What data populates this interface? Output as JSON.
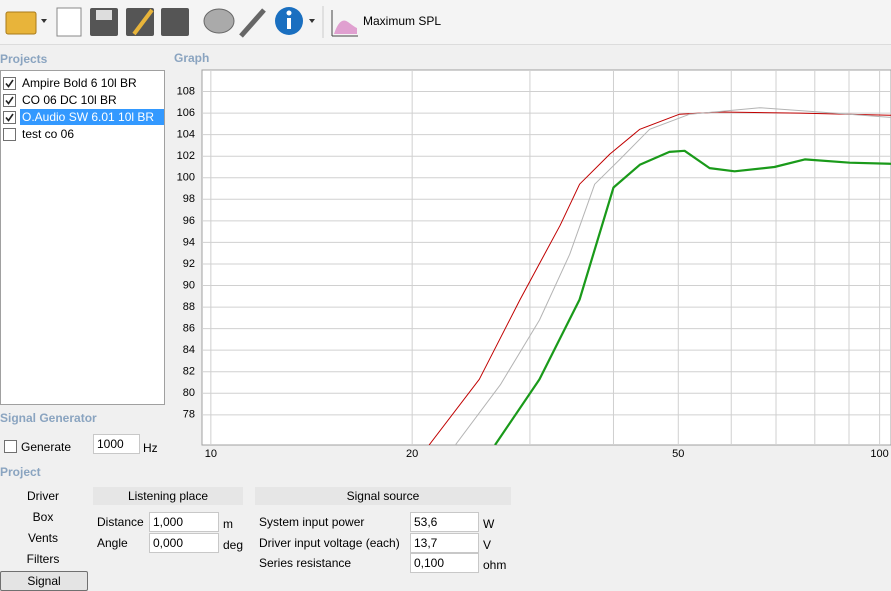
{
  "toolbar": {
    "title": "Maximum SPL"
  },
  "projects": {
    "title": "Projects",
    "selected": 2,
    "items": [
      {
        "label": "Ampire Bold 6 10l BR",
        "checked": true
      },
      {
        "label": "CO 06 DC 10l BR",
        "checked": true
      },
      {
        "label": "O.Audio SW 6.01 10l BR",
        "checked": true
      },
      {
        "label": "test co 06",
        "checked": false
      }
    ]
  },
  "signal_generator": {
    "title": "Signal Generator",
    "generate_label": "Generate",
    "generate_checked": false,
    "frequency": "1000",
    "unit": "Hz"
  },
  "project": {
    "title": "Project",
    "active_tab": 4,
    "tabs": [
      "Driver",
      "Box",
      "Vents",
      "Filters",
      "Signal"
    ],
    "listening_place": {
      "title": "Listening place",
      "fields": [
        {
          "label": "Distance",
          "value": "1,000",
          "unit": "m"
        },
        {
          "label": "Angle",
          "value": "0,000",
          "unit": "deg"
        }
      ]
    },
    "signal_source": {
      "title": "Signal source",
      "fields": [
        {
          "label": "System input power",
          "value": "53,6",
          "unit": "W"
        },
        {
          "label": "Driver input voltage (each)",
          "value": "13,7",
          "unit": "V"
        },
        {
          "label": "Series resistance",
          "value": "0,100",
          "unit": "ohm"
        }
      ]
    }
  },
  "chart_data": {
    "type": "line",
    "title": "Graph",
    "xscale": "log",
    "grid": true,
    "xlim": [
      9.7,
      104
    ],
    "ylim": [
      75.2,
      110
    ],
    "xticks": [
      10,
      20,
      50,
      100
    ],
    "xgrid": [
      10,
      20,
      30,
      40,
      50,
      60,
      70,
      80,
      90,
      100
    ],
    "yticks": [
      78,
      80,
      82,
      84,
      86,
      88,
      90,
      92,
      94,
      96,
      98,
      100,
      102,
      104,
      106,
      108
    ],
    "series": [
      {
        "color": "#c00000",
        "width": 1,
        "x": [
          21.2,
          25.2,
          29.0,
          33.3,
          35.6,
          39.5,
          43.8,
          50.2,
          57.7,
          75.9,
          104
        ],
        "values": [
          75.2,
          81.3,
          88.7,
          95.6,
          99.4,
          102.2,
          104.5,
          105.9,
          106.1,
          106.0,
          105.8
        ]
      },
      {
        "color": "#b4b4b4",
        "width": 1,
        "x": [
          23.2,
          27.1,
          31.0,
          34.4,
          37.5,
          40.9,
          45.3,
          52.0,
          66.2,
          81.3,
          104
        ],
        "values": [
          75.2,
          80.8,
          86.8,
          92.9,
          99.4,
          101.7,
          104.5,
          105.9,
          106.5,
          106.1,
          105.6
        ]
      },
      {
        "color": "#1a9a1a",
        "width": 2.2,
        "x": [
          26.6,
          31.0,
          35.6,
          40.0,
          43.8,
          48.5,
          51.1,
          55.7,
          60.7,
          69.6,
          77.3,
          90.2,
          104
        ],
        "values": [
          75.2,
          81.3,
          88.7,
          99.1,
          101.2,
          102.4,
          102.5,
          100.9,
          100.6,
          101.0,
          101.7,
          101.4,
          101.3
        ]
      }
    ]
  }
}
